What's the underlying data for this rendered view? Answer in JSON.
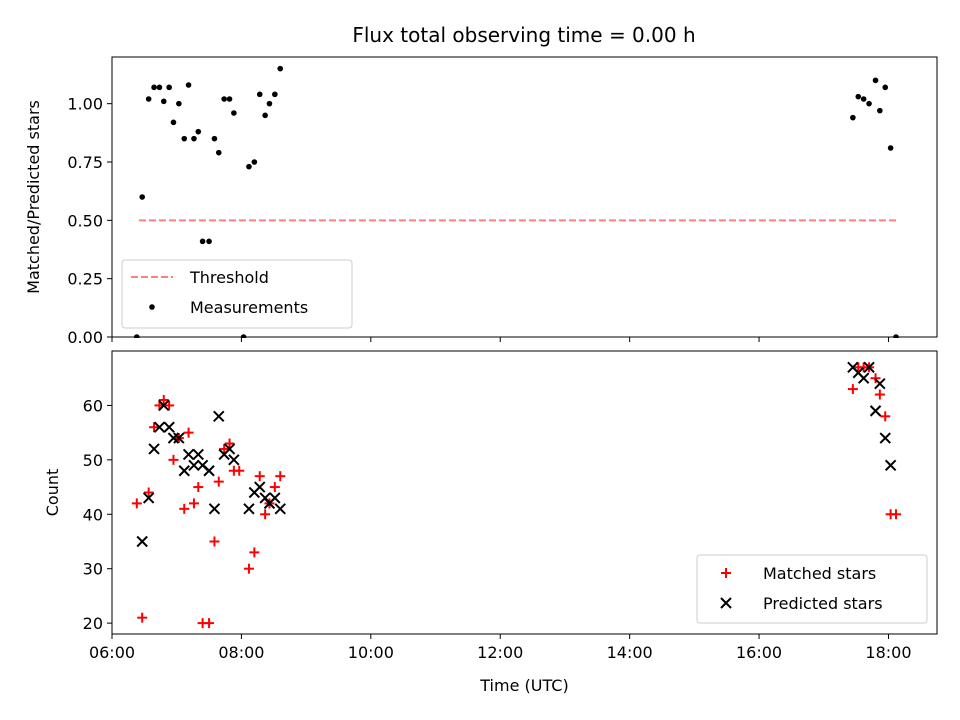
{
  "chart_data": [
    {
      "type": "scatter",
      "title": "Flux total observing time = 0.00 h",
      "xlabel": "",
      "ylabel": "Matched/Predicted stars",
      "xlim": [
        "06:00",
        "18:45"
      ],
      "ylim": [
        0,
        1.2
      ],
      "yticks": [
        "0.00",
        "0.25",
        "0.50",
        "0.75",
        "1.00"
      ],
      "grid": false,
      "legend_position": "lower-left",
      "threshold": {
        "name": "Threshold",
        "x": [
          "06:25",
          "18:08"
        ],
        "y": 0.5,
        "color": "#ff7f7f",
        "style": "dashed"
      },
      "series": [
        {
          "name": "Measurements",
          "color": "#000000",
          "marker": "dot",
          "points": [
            [
              "06:23",
              0.0
            ],
            [
              "06:28",
              0.6
            ],
            [
              "06:34",
              1.02
            ],
            [
              "06:39",
              1.07
            ],
            [
              "06:44",
              1.07
            ],
            [
              "06:48",
              1.01
            ],
            [
              "06:53",
              1.07
            ],
            [
              "06:57",
              0.92
            ],
            [
              "07:02",
              1.0
            ],
            [
              "07:07",
              0.85
            ],
            [
              "07:11",
              1.08
            ],
            [
              "07:16",
              0.85
            ],
            [
              "07:20",
              0.88
            ],
            [
              "07:24",
              0.41
            ],
            [
              "07:30",
              0.41
            ],
            [
              "07:35",
              0.85
            ],
            [
              "07:39",
              0.79
            ],
            [
              "07:44",
              1.02
            ],
            [
              "07:49",
              1.02
            ],
            [
              "07:53",
              0.96
            ],
            [
              "08:02",
              0.0
            ],
            [
              "08:07",
              0.73
            ],
            [
              "08:12",
              0.75
            ],
            [
              "08:17",
              1.04
            ],
            [
              "08:22",
              0.95
            ],
            [
              "08:26",
              1.0
            ],
            [
              "08:31",
              1.04
            ],
            [
              "08:36",
              1.15
            ],
            [
              "17:27",
              0.94
            ],
            [
              "17:32",
              1.03
            ],
            [
              "17:37",
              1.02
            ],
            [
              "17:42",
              1.0
            ],
            [
              "17:48",
              1.1
            ],
            [
              "17:52",
              0.97
            ],
            [
              "17:57",
              1.07
            ],
            [
              "18:02",
              0.81
            ],
            [
              "18:07",
              0.0
            ]
          ]
        }
      ]
    },
    {
      "type": "scatter",
      "title": "",
      "xlabel": "Time (UTC)",
      "ylabel": "Count",
      "xlim": [
        "06:00",
        "18:45"
      ],
      "ylim": [
        18,
        70
      ],
      "xticks": [
        "06:00",
        "08:00",
        "10:00",
        "12:00",
        "14:00",
        "16:00",
        "18:00"
      ],
      "yticks": [
        "20",
        "30",
        "40",
        "50",
        "60"
      ],
      "grid": false,
      "legend_position": "lower-right",
      "series": [
        {
          "name": "Matched stars",
          "color": "#ff0000",
          "marker": "plus",
          "points": [
            [
              "06:23",
              42
            ],
            [
              "06:28",
              21
            ],
            [
              "06:34",
              44
            ],
            [
              "06:39",
              56
            ],
            [
              "06:44",
              60
            ],
            [
              "06:48",
              61
            ],
            [
              "06:53",
              60
            ],
            [
              "06:57",
              50
            ],
            [
              "07:02",
              54
            ],
            [
              "07:07",
              41
            ],
            [
              "07:11",
              55
            ],
            [
              "07:16",
              42
            ],
            [
              "07:20",
              45
            ],
            [
              "07:24",
              20
            ],
            [
              "07:30",
              20
            ],
            [
              "07:35",
              35
            ],
            [
              "07:39",
              46
            ],
            [
              "07:44",
              52
            ],
            [
              "07:49",
              53
            ],
            [
              "07:53",
              48
            ],
            [
              "07:58",
              48
            ],
            [
              "08:07",
              30
            ],
            [
              "08:12",
              33
            ],
            [
              "08:17",
              47
            ],
            [
              "08:22",
              40
            ],
            [
              "08:26",
              42
            ],
            [
              "08:31",
              45
            ],
            [
              "08:36",
              47
            ],
            [
              "17:27",
              63
            ],
            [
              "17:32",
              67
            ],
            [
              "17:37",
              67
            ],
            [
              "17:42",
              67
            ],
            [
              "17:48",
              65
            ],
            [
              "17:52",
              62
            ],
            [
              "17:57",
              58
            ],
            [
              "18:02",
              40
            ],
            [
              "18:07",
              40
            ]
          ]
        },
        {
          "name": "Predicted stars",
          "color": "#000000",
          "marker": "x",
          "points": [
            [
              "06:28",
              35
            ],
            [
              "06:34",
              43
            ],
            [
              "06:39",
              52
            ],
            [
              "06:44",
              56
            ],
            [
              "06:48",
              60
            ],
            [
              "06:53",
              56
            ],
            [
              "06:57",
              54
            ],
            [
              "07:02",
              54
            ],
            [
              "07:07",
              48
            ],
            [
              "07:11",
              51
            ],
            [
              "07:16",
              49
            ],
            [
              "07:20",
              51
            ],
            [
              "07:24",
              49
            ],
            [
              "07:30",
              48
            ],
            [
              "07:35",
              41
            ],
            [
              "07:39",
              58
            ],
            [
              "07:44",
              51
            ],
            [
              "07:49",
              52
            ],
            [
              "07:53",
              50
            ],
            [
              "08:07",
              41
            ],
            [
              "08:12",
              44
            ],
            [
              "08:17",
              45
            ],
            [
              "08:22",
              43
            ],
            [
              "08:26",
              42
            ],
            [
              "08:31",
              43
            ],
            [
              "08:36",
              41
            ],
            [
              "17:27",
              67
            ],
            [
              "17:32",
              66
            ],
            [
              "17:37",
              65
            ],
            [
              "17:42",
              67
            ],
            [
              "17:48",
              59
            ],
            [
              "17:52",
              64
            ],
            [
              "17:57",
              54
            ],
            [
              "18:02",
              49
            ]
          ]
        }
      ]
    }
  ]
}
